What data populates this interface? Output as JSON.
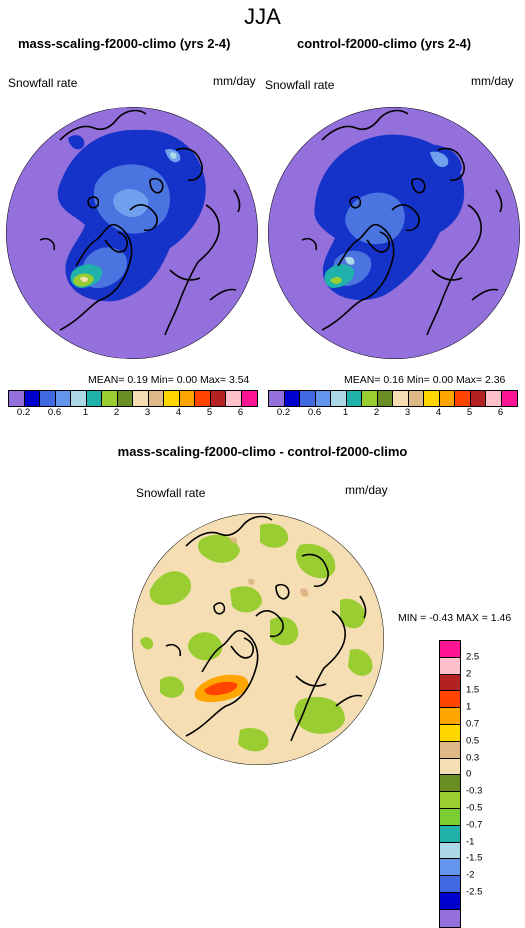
{
  "season": "JJA",
  "top_left": {
    "title": "mass-scaling-f2000-climo (yrs 2-4)",
    "variable": "Snowfall rate",
    "units": "mm/day",
    "stats": "MEAN=  0.19  Min=  0.00  Max=  3.54"
  },
  "top_right": {
    "title": "control-f2000-climo (yrs 2-4)",
    "variable": "Snowfall rate",
    "units": "mm/day",
    "stats": "MEAN=  0.16  Min=  0.00  Max=  2.36"
  },
  "bottom": {
    "title": "mass-scaling-f2000-climo - control-f2000-climo",
    "variable": "Snowfall rate",
    "units": "mm/day",
    "minmax": "MIN =  -0.43 MAX =  1.46"
  },
  "colorbar_top": {
    "colors": [
      "#9370db",
      "#0000cd",
      "#4169e1",
      "#6495ed",
      "#add8e6",
      "#20b2aa",
      "#9acd32",
      "#6b8e23",
      "#f5deb3",
      "#deb887",
      "#ffd700",
      "#ffa500",
      "#ff4500",
      "#b22222",
      "#ffc0cb",
      "#ff1493"
    ],
    "ticks": [
      "0.2",
      "0.6",
      "1",
      "2",
      "3",
      "4",
      "5",
      "6"
    ]
  },
  "colorbar_diff": {
    "colors_top_to_bottom": [
      "#ff1493",
      "#ffc0cb",
      "#b22222",
      "#ff4500",
      "#ffa500",
      "#ffd700",
      "#deb887",
      "#f5deb3",
      "#6b8e23",
      "#9acd32",
      "#7ccd32",
      "#20b2aa",
      "#add8e6",
      "#6495ed",
      "#4169e1",
      "#0000cd",
      "#9370db"
    ],
    "ticks": [
      "2.5",
      "2",
      "1.5",
      "1",
      "0.7",
      "0.5",
      "0.3",
      "0",
      "-0.3",
      "-0.5",
      "-0.7",
      "-1",
      "-1.5",
      "-2",
      "-2.5"
    ]
  }
}
